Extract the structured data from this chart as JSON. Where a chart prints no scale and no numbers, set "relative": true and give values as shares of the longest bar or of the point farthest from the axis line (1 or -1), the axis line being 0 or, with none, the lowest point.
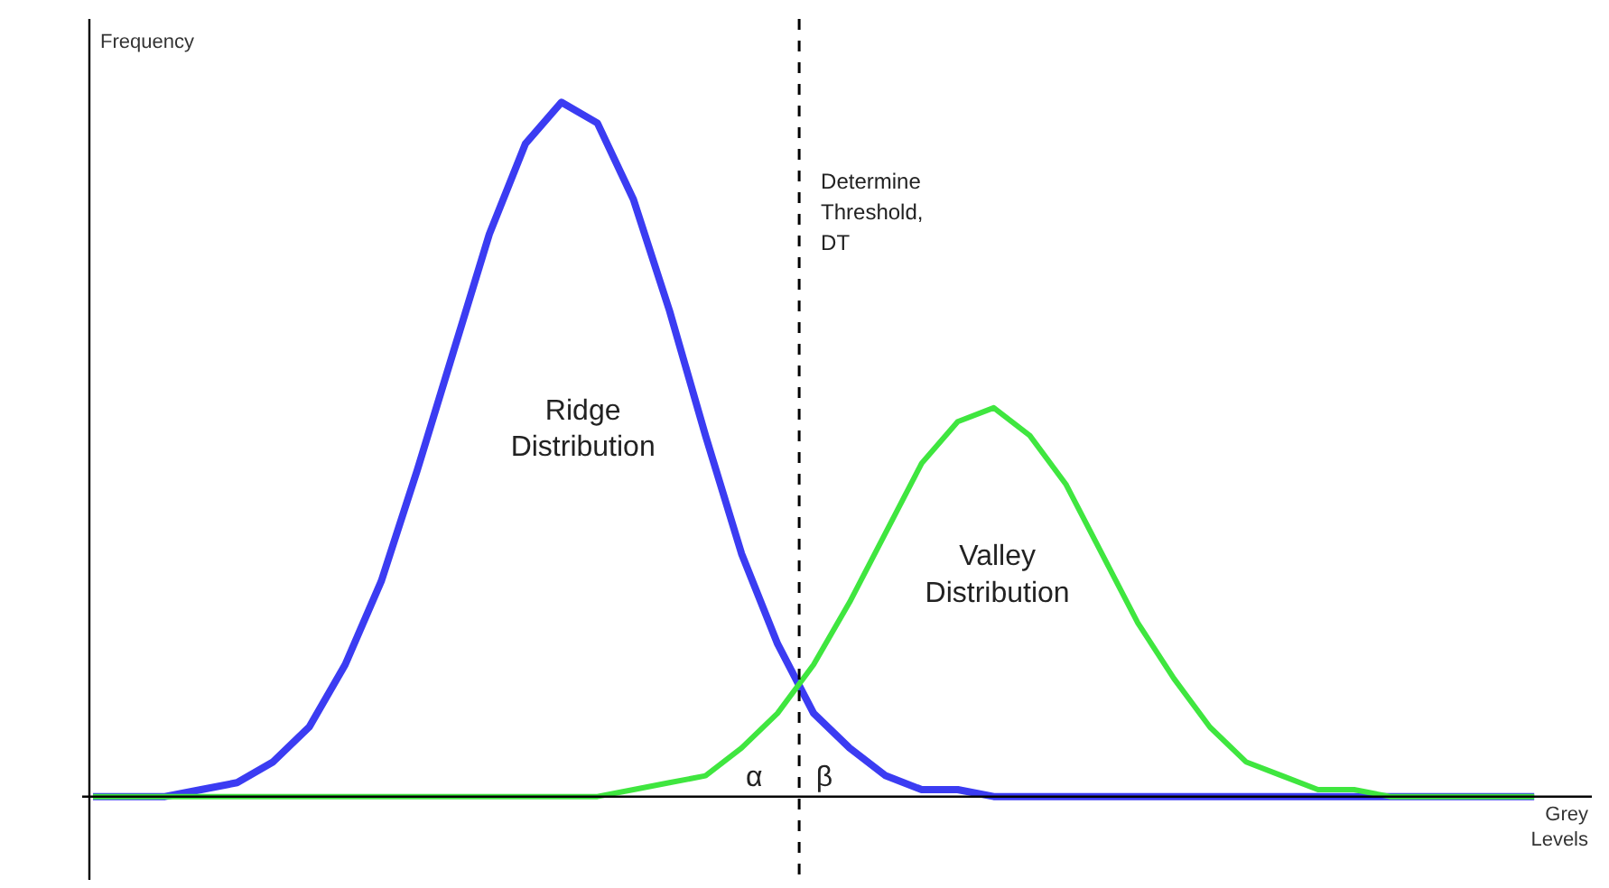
{
  "chart_data": {
    "type": "line",
    "relative": true,
    "xlabel": "Grey\nLevels",
    "ylabel": "Frequency",
    "categories": [
      null,
      null,
      null,
      null,
      null,
      null,
      null,
      null,
      null,
      null,
      null,
      null,
      null,
      null,
      null,
      null,
      null,
      null,
      null,
      null,
      null,
      null,
      null,
      null,
      null,
      null,
      null,
      null,
      null,
      null,
      null,
      null,
      null,
      null,
      null,
      null,
      null,
      null,
      null,
      null,
      null
    ],
    "series": [
      {
        "color": "#3b3cf2",
        "values": [
          0,
          0,
          0,
          0.01,
          0.02,
          0.05,
          0.1,
          0.19,
          0.31,
          0.47,
          0.64,
          0.81,
          0.94,
          1,
          0.97,
          0.86,
          0.7,
          0.52,
          0.35,
          0.22,
          0.12,
          0.07,
          0.03,
          0.01,
          0.01,
          0,
          0,
          0,
          0,
          0,
          0,
          0,
          0,
          0,
          0,
          0,
          0,
          0,
          0,
          0,
          0
        ]
      },
      {
        "color": "#3fe63f",
        "values": [
          0,
          0,
          0,
          0,
          0,
          0,
          0,
          0,
          0,
          0,
          0,
          0,
          0,
          0,
          0,
          0.01,
          0.02,
          0.03,
          0.07,
          0.12,
          0.19,
          0.28,
          0.38,
          0.48,
          0.54,
          0.56,
          0.52,
          0.45,
          0.35,
          0.25,
          0.17,
          0.1,
          0.05,
          0.03,
          0.01,
          0.01,
          0,
          0,
          0,
          0,
          0
        ]
      }
    ],
    "annotations": [
      "Ridge\nDistribution",
      "Valley\nDistribution",
      "α",
      "β",
      "Determine\nThreshold,\nDT"
    ],
    "tick_labels": false,
    "grid": false,
    "line_style": "solid",
    "marker": "none"
  }
}
